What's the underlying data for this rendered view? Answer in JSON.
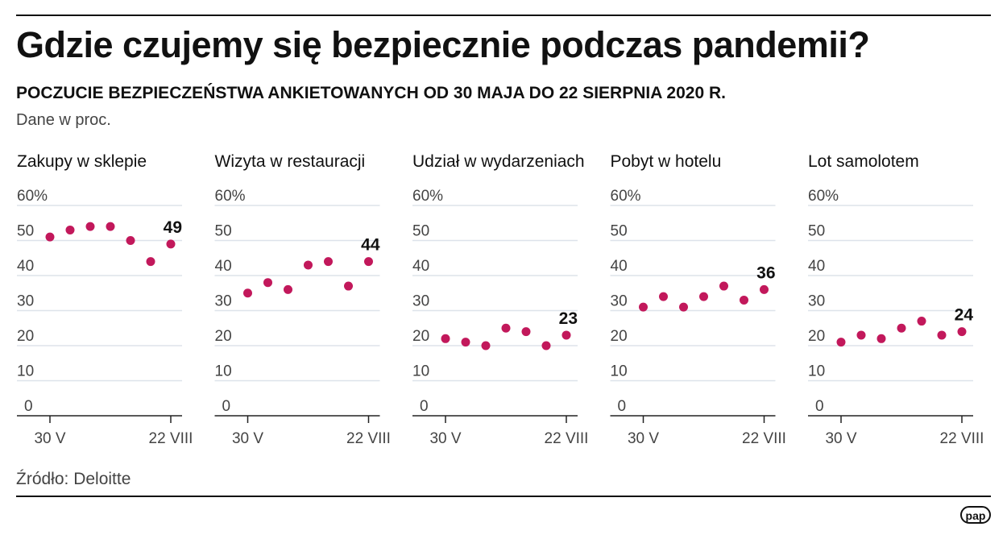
{
  "title": "Gdzie czujemy się bezpiecznie podczas pandemii?",
  "subtitle": "POCZUCIE BEZPIECZEŃSTWA ANKIETOWANYCH OD 30 MAJA DO 22 SIERPNIA 2020 R.",
  "unit": "Dane w proc.",
  "source": "Źródło: Deloitte",
  "logo": "pap",
  "colors": {
    "dot": "#c2185b",
    "grid": "#dde3ea",
    "axis": "#222"
  },
  "chart_data": [
    {
      "type": "scatter",
      "title": "Zakupy w sklepie",
      "ylim": [
        0,
        60
      ],
      "yticks": [
        "60%",
        "50",
        "40",
        "30",
        "20",
        "10",
        "0"
      ],
      "xticks": [
        "30 V",
        "22 VIII"
      ],
      "values": [
        51,
        53,
        54,
        54,
        50,
        44,
        49
      ],
      "last_label": "49"
    },
    {
      "type": "scatter",
      "title": "Wizyta w restauracji",
      "ylim": [
        0,
        60
      ],
      "yticks": [
        "60%",
        "50",
        "40",
        "30",
        "20",
        "10",
        "0"
      ],
      "xticks": [
        "30 V",
        "22 VIII"
      ],
      "values": [
        35,
        38,
        36,
        43,
        44,
        37,
        44
      ],
      "last_label": "44"
    },
    {
      "type": "scatter",
      "title": "Udział w wydarzeniach",
      "ylim": [
        0,
        60
      ],
      "yticks": [
        "60%",
        "50",
        "40",
        "30",
        "20",
        "10",
        "0"
      ],
      "xticks": [
        "30 V",
        "22 VIII"
      ],
      "values": [
        22,
        21,
        20,
        25,
        24,
        20,
        23
      ],
      "last_label": "23"
    },
    {
      "type": "scatter",
      "title": "Pobyt w hotelu",
      "ylim": [
        0,
        60
      ],
      "yticks": [
        "60%",
        "50",
        "40",
        "30",
        "20",
        "10",
        "0"
      ],
      "xticks": [
        "30 V",
        "22 VIII"
      ],
      "values": [
        31,
        34,
        31,
        34,
        37,
        33,
        36
      ],
      "last_label": "36"
    },
    {
      "type": "scatter",
      "title": "Lot samolotem",
      "ylim": [
        0,
        60
      ],
      "yticks": [
        "60%",
        "50",
        "40",
        "30",
        "20",
        "10",
        "0"
      ],
      "xticks": [
        "30 V",
        "22 VIII"
      ],
      "values": [
        21,
        23,
        22,
        25,
        27,
        23,
        24
      ],
      "last_label": "24"
    }
  ]
}
